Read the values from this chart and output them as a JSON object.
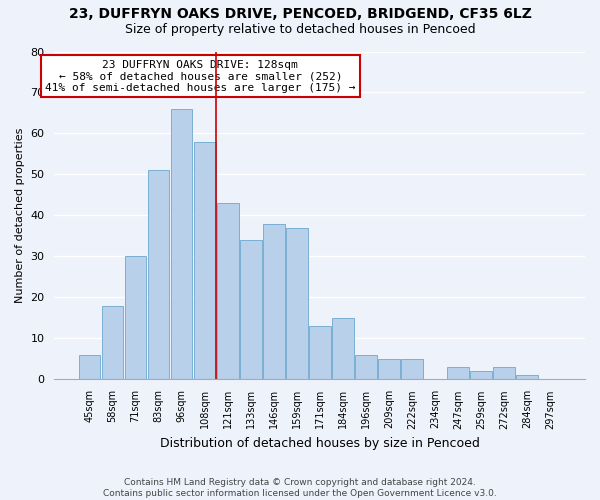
{
  "title": "23, DUFFRYN OAKS DRIVE, PENCOED, BRIDGEND, CF35 6LZ",
  "subtitle": "Size of property relative to detached houses in Pencoed",
  "xlabel": "Distribution of detached houses by size in Pencoed",
  "ylabel": "Number of detached properties",
  "bar_labels": [
    "45sqm",
    "58sqm",
    "71sqm",
    "83sqm",
    "96sqm",
    "108sqm",
    "121sqm",
    "133sqm",
    "146sqm",
    "159sqm",
    "171sqm",
    "184sqm",
    "196sqm",
    "209sqm",
    "222sqm",
    "234sqm",
    "247sqm",
    "259sqm",
    "272sqm",
    "284sqm",
    "297sqm"
  ],
  "bar_values": [
    6,
    18,
    30,
    51,
    66,
    58,
    43,
    34,
    38,
    37,
    13,
    15,
    6,
    5,
    5,
    0,
    3,
    2,
    3,
    1,
    0
  ],
  "bar_color": "#b8d0ea",
  "bar_edge_color": "#7aafd4",
  "background_color": "#eef2fb",
  "grid_color": "#ffffff",
  "ylim": [
    0,
    80
  ],
  "yticks": [
    0,
    10,
    20,
    30,
    40,
    50,
    60,
    70,
    80
  ],
  "annotation_text": "23 DUFFRYN OAKS DRIVE: 128sqm\n← 58% of detached houses are smaller (252)\n41% of semi-detached houses are larger (175) →",
  "annotation_box_color": "#ffffff",
  "annotation_box_edge": "#cc0000",
  "property_line_x": 5.5,
  "property_line_color": "#cc0000",
  "footer_line1": "Contains HM Land Registry data © Crown copyright and database right 2024.",
  "footer_line2": "Contains public sector information licensed under the Open Government Licence v3.0."
}
